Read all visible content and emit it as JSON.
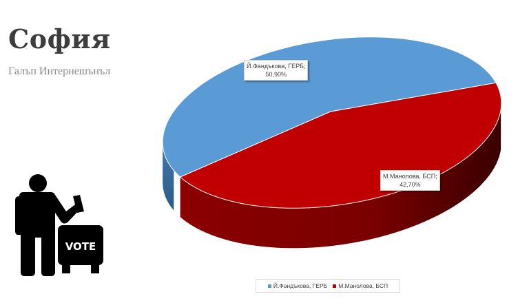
{
  "header": {
    "title": "София",
    "subtitle": "Галъп Интернешънъл"
  },
  "icon": {
    "ballot_text": "VOTE",
    "name": "voter-ballot-box-icon"
  },
  "chart_data": {
    "type": "pie",
    "title": "",
    "series": [
      {
        "name": "Й.Фандъкова, ГЕРБ",
        "value": 50.9,
        "label": "Й.Фандъкова, ГЕРБ;",
        "value_label": "50,90%",
        "color": "#5b9bd5"
      },
      {
        "name": "М.Манолова, БСП",
        "value": 42.7,
        "label": "М.Манолова, БСП;",
        "value_label": "42,70%",
        "color": "#c00000"
      }
    ],
    "legend_position": "bottom",
    "style": "3d"
  }
}
